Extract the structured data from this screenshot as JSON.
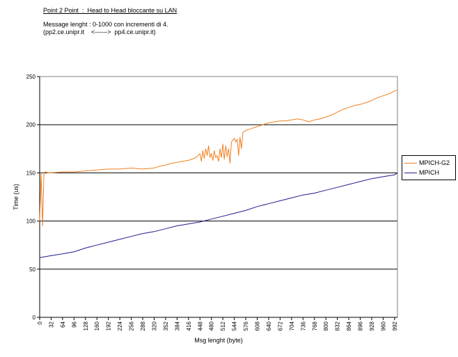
{
  "header": {
    "title": "Point 2 Point  :  Head to Head bloccante su LAN",
    "subtitle": "Message lenght : 0-1000 con incrementi di 4.",
    "subtitle2": "(pp2.ce.unipr.it    <------>  pp4.ce.unipr.it)"
  },
  "chart_data": {
    "type": "line",
    "xlabel": "Msg lenght (byte)",
    "ylabel": "Time (us)",
    "ylim": [
      0,
      250
    ],
    "yticks": [
      0,
      50,
      100,
      150,
      200,
      250
    ],
    "xlim": [
      0,
      1000
    ],
    "xticks": [
      0,
      32,
      64,
      96,
      128,
      160,
      192,
      224,
      256,
      288,
      320,
      352,
      384,
      416,
      448,
      480,
      512,
      544,
      576,
      608,
      640,
      672,
      704,
      736,
      768,
      800,
      832,
      864,
      896,
      928,
      960,
      992
    ],
    "grid": "horizontal",
    "legend_position": "right",
    "series": [
      {
        "name": "MPICH-G2",
        "color": "#f07f1e",
        "x": [
          0,
          4,
          8,
          12,
          16,
          24,
          32,
          64,
          96,
          128,
          160,
          192,
          224,
          256,
          288,
          320,
          336,
          352,
          368,
          384,
          400,
          416,
          432,
          440,
          448,
          452,
          456,
          460,
          464,
          468,
          472,
          476,
          480,
          484,
          488,
          492,
          496,
          500,
          504,
          508,
          512,
          516,
          520,
          524,
          528,
          532,
          536,
          540,
          544,
          548,
          552,
          556,
          560,
          564,
          568,
          572,
          576,
          592,
          608,
          624,
          640,
          656,
          672,
          688,
          704,
          720,
          736,
          752,
          768,
          784,
          800,
          816,
          832,
          848,
          864,
          880,
          896,
          912,
          928,
          944,
          960,
          976,
          992,
          1000
        ],
        "values": [
          100,
          150,
          95,
          150,
          151,
          150,
          150,
          151,
          151,
          152,
          153,
          154,
          154,
          155,
          154,
          155,
          157,
          158,
          160,
          161,
          162,
          163,
          165,
          167,
          170,
          162,
          173,
          165,
          175,
          168,
          178,
          166,
          170,
          163,
          173,
          166,
          168,
          162,
          175,
          166,
          180,
          164,
          178,
          167,
          175,
          160,
          182,
          184,
          186,
          182,
          185,
          168,
          187,
          175,
          192,
          193,
          194,
          196,
          198,
          200,
          202,
          203,
          204,
          204,
          205,
          206,
          205,
          203,
          205,
          206,
          208,
          210,
          213,
          216,
          218,
          220,
          221,
          223,
          225,
          228,
          230,
          232,
          235,
          236
        ]
      },
      {
        "name": "MPICH",
        "color": "#1f1a8c",
        "x": [
          0,
          32,
          64,
          96,
          128,
          160,
          192,
          224,
          256,
          288,
          320,
          352,
          384,
          416,
          448,
          480,
          512,
          544,
          576,
          608,
          640,
          672,
          704,
          736,
          768,
          800,
          832,
          864,
          896,
          928,
          960,
          992,
          1000
        ],
        "values": [
          62,
          64,
          66,
          68,
          72,
          75,
          78,
          81,
          84,
          87,
          89,
          92,
          95,
          97,
          99,
          102,
          105,
          108,
          111,
          115,
          118,
          121,
          124,
          127,
          129,
          132,
          135,
          138,
          141,
          144,
          146,
          148,
          150
        ]
      }
    ]
  }
}
